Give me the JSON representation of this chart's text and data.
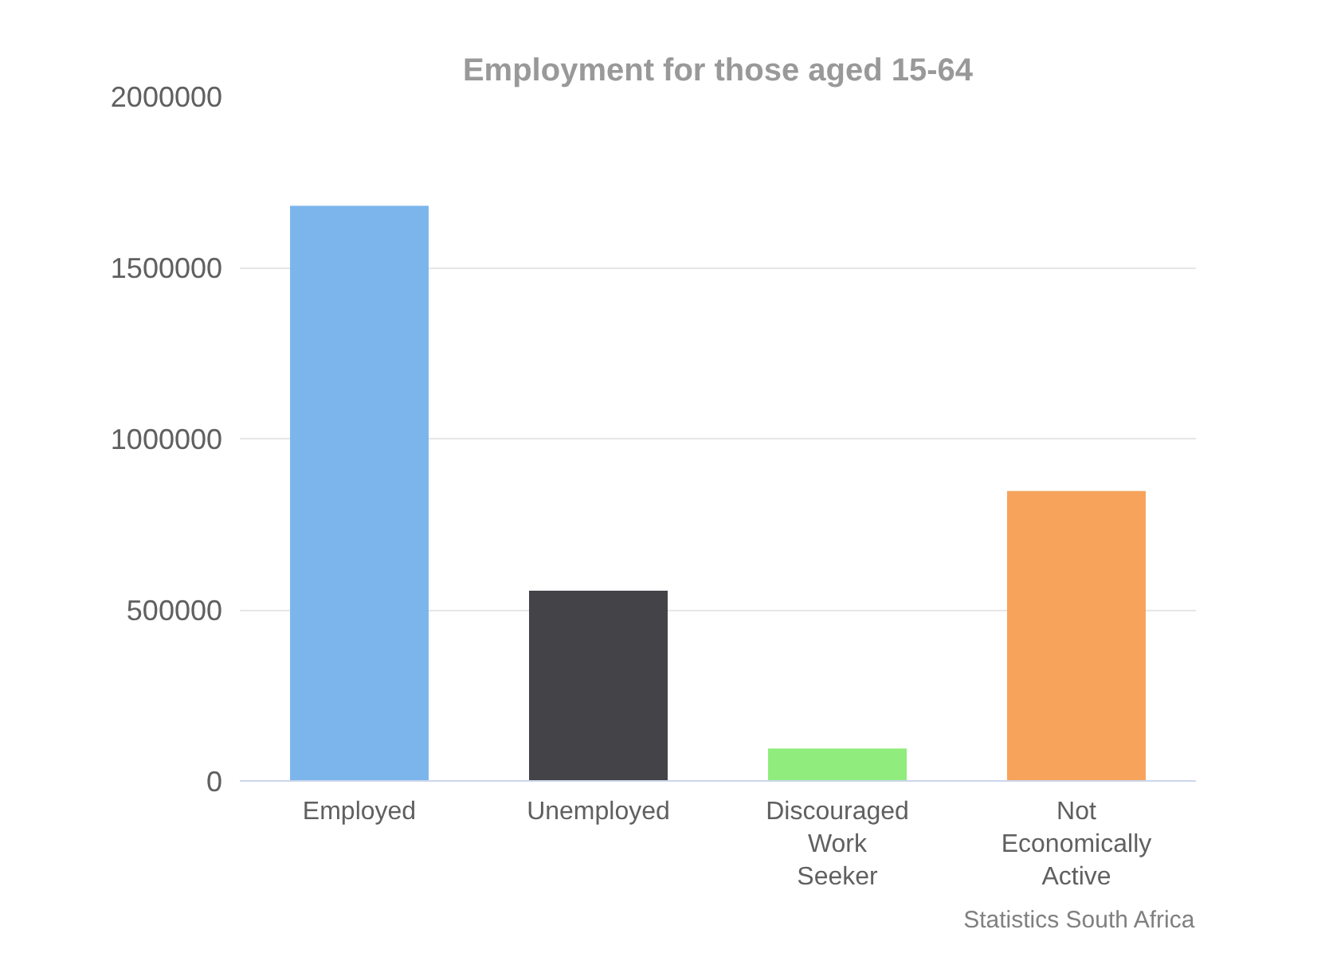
{
  "chart_data": {
    "type": "bar",
    "title": "Employment for those aged 15-64",
    "categories": [
      "Employed",
      "Unemployed",
      "Discouraged Work Seeker",
      "Not Economically Active"
    ],
    "values": [
      1680000,
      556000,
      95000,
      847000
    ],
    "colors": [
      "#7cb5ec",
      "#434348",
      "#90ed7d",
      "#f7a35c"
    ],
    "ylim": [
      0,
      2000000
    ],
    "yticks": [
      0,
      500000,
      1000000,
      1500000,
      2000000
    ],
    "grid": "y",
    "annotations": [
      "Statistics South Africa"
    ]
  }
}
